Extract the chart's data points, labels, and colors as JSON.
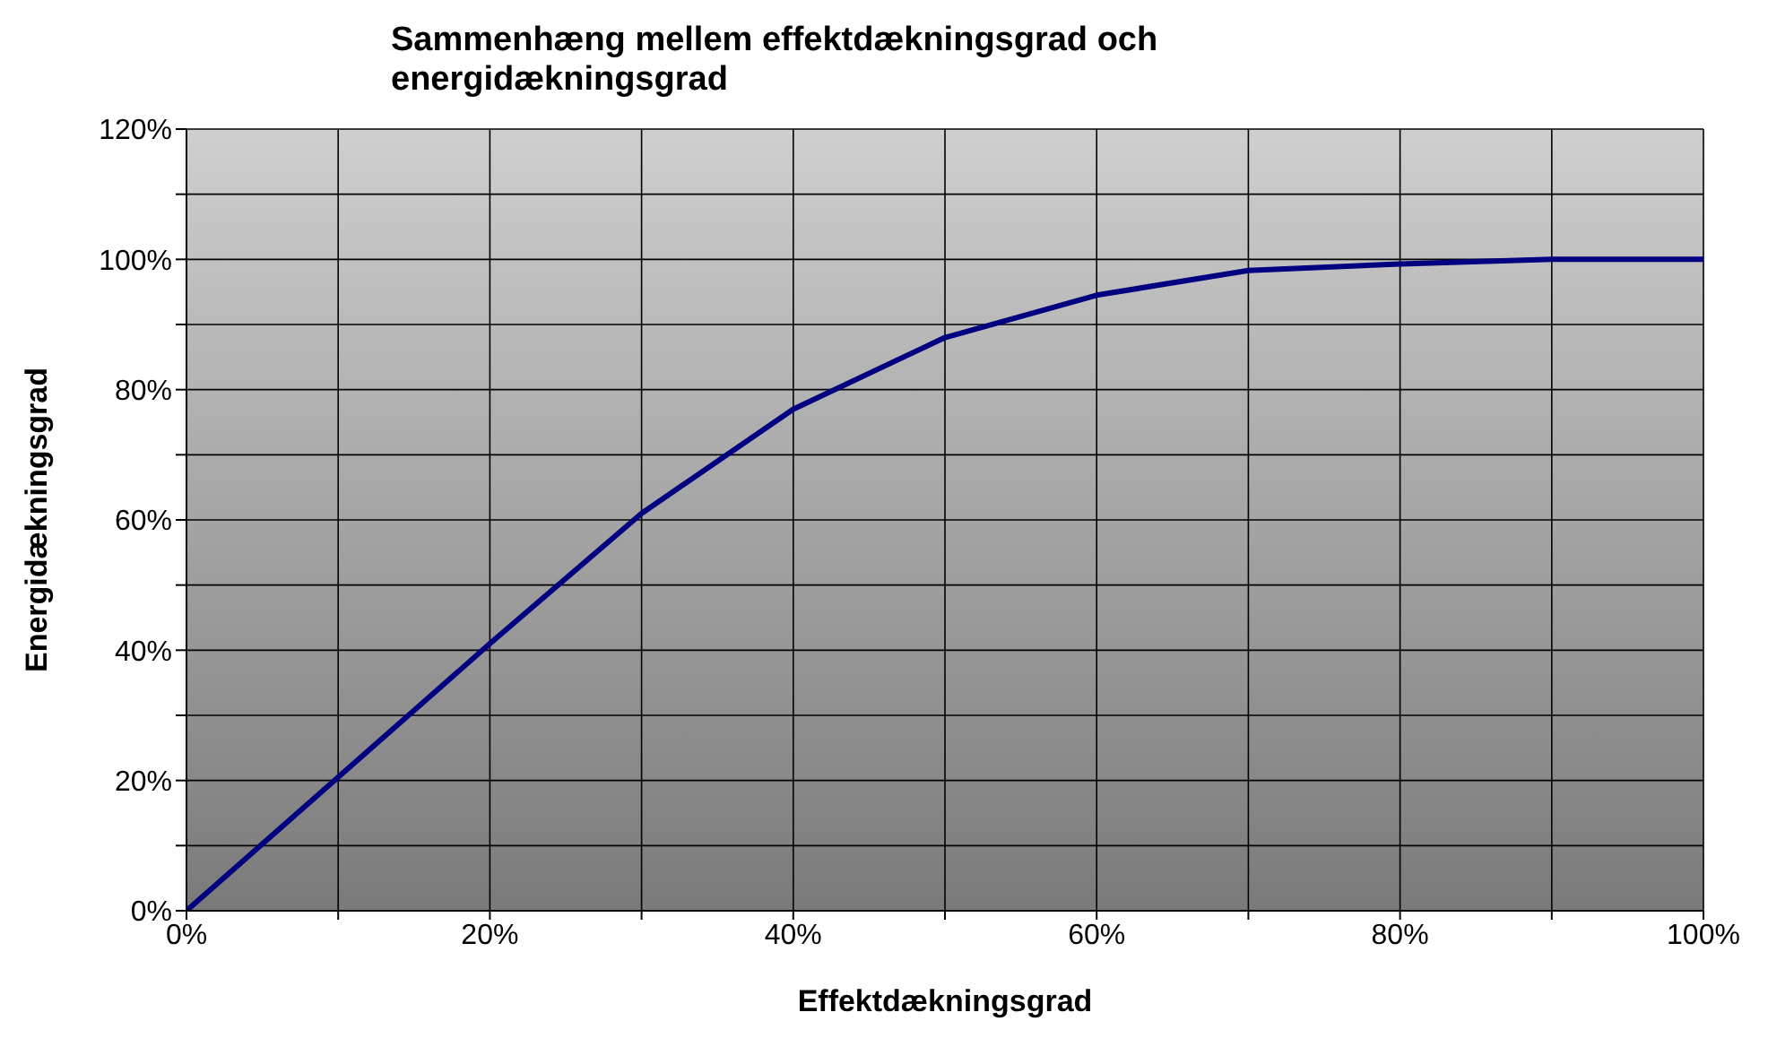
{
  "chart_data": {
    "type": "line",
    "title": "Sammenhæng mellem effektdækningsgrad och energidækningsgrad",
    "xlabel": "Effektdækningsgrad",
    "ylabel": "Energidækningsgrad",
    "x": [
      0,
      10,
      20,
      30,
      40,
      50,
      60,
      70,
      80,
      90,
      100
    ],
    "series": [
      {
        "color": "#000080",
        "values": [
          0,
          20.5,
          41,
          61,
          77,
          88,
          94.5,
          98.3,
          99.3,
          100,
          100
        ]
      }
    ],
    "xlim": [
      0,
      100
    ],
    "ylim": [
      0,
      120
    ],
    "xticks": [
      {
        "value": 0,
        "label": "0%"
      },
      {
        "value": 10,
        "label": null
      },
      {
        "value": 20,
        "label": "20%"
      },
      {
        "value": 30,
        "label": null
      },
      {
        "value": 40,
        "label": "40%"
      },
      {
        "value": 50,
        "label": null
      },
      {
        "value": 60,
        "label": "60%"
      },
      {
        "value": 70,
        "label": null
      },
      {
        "value": 80,
        "label": "80%"
      },
      {
        "value": 90,
        "label": null
      },
      {
        "value": 100,
        "label": "100%"
      }
    ],
    "yticks": [
      {
        "value": 0,
        "label": "0%"
      },
      {
        "value": 10,
        "label": null
      },
      {
        "value": 20,
        "label": "20%"
      },
      {
        "value": 30,
        "label": null
      },
      {
        "value": 40,
        "label": "40%"
      },
      {
        "value": 50,
        "label": null
      },
      {
        "value": 60,
        "label": "60%"
      },
      {
        "value": 70,
        "label": null
      },
      {
        "value": 80,
        "label": "80%"
      },
      {
        "value": 90,
        "label": null
      },
      {
        "value": 100,
        "label": "100%"
      },
      {
        "value": 110,
        "label": null
      },
      {
        "value": 120,
        "label": "120%"
      }
    ],
    "grid": true,
    "marker": "none",
    "line_style": "solid",
    "legend": false
  }
}
